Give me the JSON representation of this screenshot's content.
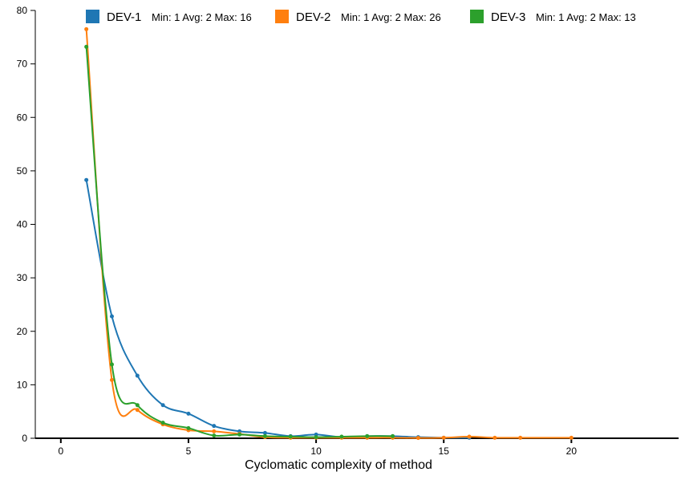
{
  "chart_data": {
    "type": "line",
    "xlabel": "Cyclomatic complexity of method",
    "ylabel": "",
    "xlim": [
      -1,
      24.2
    ],
    "ylim": [
      0,
      80
    ],
    "xticks": [
      0,
      5,
      10,
      15,
      20
    ],
    "yticks": [
      0,
      10,
      20,
      30,
      40,
      50,
      60,
      70,
      80
    ],
    "legend_position": "top",
    "series": [
      {
        "name": "DEV-1",
        "stats": "Min: 1 Avg: 2 Max: 16",
        "color": "#1f77b4",
        "x": [
          1,
          2,
          3,
          4,
          5,
          6,
          7,
          8,
          9,
          10,
          11,
          12,
          13,
          14,
          15,
          16
        ],
        "y": [
          48.3,
          22.8,
          11.7,
          6.2,
          4.6,
          2.3,
          1.3,
          1.0,
          0.4,
          0.7,
          0.2,
          0.4,
          0.4,
          0.2,
          0.1,
          0.1
        ]
      },
      {
        "name": "DEV-2",
        "stats": "Min: 1 Avg: 2 Max: 26",
        "color": "#ff7f0e",
        "x": [
          1,
          2,
          3,
          4,
          5,
          6,
          7,
          8,
          9,
          10,
          11,
          12,
          13,
          14,
          15,
          16,
          17,
          18,
          20
        ],
        "y": [
          76.5,
          10.9,
          5.3,
          2.6,
          1.5,
          1.3,
          0.8,
          0.2,
          0.1,
          0.1,
          0.1,
          0.1,
          0.1,
          0.05,
          0.1,
          0.3,
          0.1,
          0.1,
          0.1
        ]
      },
      {
        "name": "DEV-3",
        "stats": "Min: 1 Avg: 2 Max: 13",
        "color": "#2ca02c",
        "x": [
          1,
          2,
          3,
          4,
          5,
          6,
          7,
          8,
          9,
          10,
          11,
          12,
          13
        ],
        "y": [
          73.2,
          13.8,
          6.2,
          2.9,
          1.9,
          0.5,
          0.7,
          0.4,
          0.3,
          0.2,
          0.3,
          0.4,
          0.4
        ]
      }
    ]
  }
}
